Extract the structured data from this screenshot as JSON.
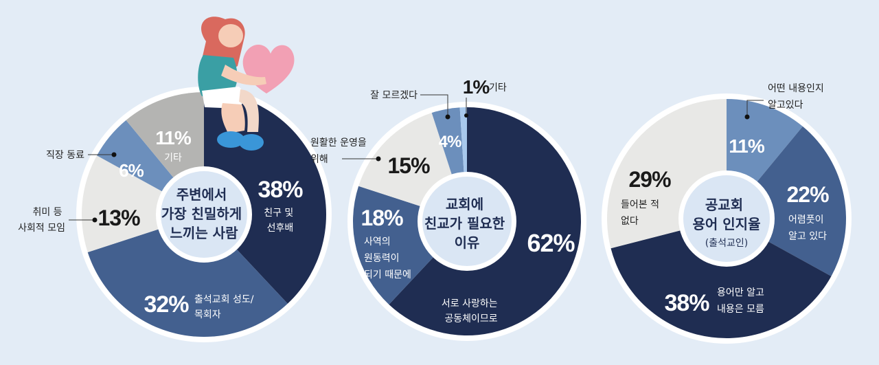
{
  "colors": {
    "navy": "#1f2d52",
    "mid": "#43608f",
    "light": "#6c8fbc",
    "pale": "#e8e8e6",
    "gray": "#b4b4b2",
    "sky": "#a8c8ec",
    "ring": "#ffffff",
    "center": "#dae6f4",
    "background": "#e3ecf6"
  },
  "chart_data": [
    {
      "type": "pie",
      "title": "주변에서 가장 친밀하게 느끼는 사람",
      "title_lines": [
        "주변에서",
        "가장 친밀하게",
        "느끼는 사람"
      ],
      "slices": [
        {
          "pct_text": "38%",
          "label_lines": [
            "친구 및",
            "선후배"
          ],
          "value": 38,
          "color": "#1f2d52",
          "pct_size": 34,
          "pct_fill": "#ffffff",
          "label_fill": "#ffffff"
        },
        {
          "pct_text": "32%",
          "label_lines": [
            "출석교회 성도/",
            "목회자"
          ],
          "value": 32,
          "color": "#43608f",
          "pct_size": 34,
          "pct_fill": "#ffffff",
          "label_fill": "#ffffff"
        },
        {
          "pct_text": "13%",
          "label_lines": [
            "취미 등",
            "사회적 모임"
          ],
          "value": 13,
          "color": "#e8e8e6",
          "pct_size": 32,
          "pct_fill": "#1a1a1a",
          "label_fill": "#222222",
          "external": true
        },
        {
          "pct_text": "6%",
          "label_lines": [
            "직장 동료"
          ],
          "value": 6,
          "color": "#6c8fbc",
          "pct_size": 26,
          "pct_fill": "#ffffff",
          "label_fill": "#222222",
          "external": true
        },
        {
          "pct_text": "11%",
          "label_lines": [
            "기타"
          ],
          "value": 11,
          "color": "#b4b4b2",
          "pct_size": 28,
          "pct_fill": "#ffffff",
          "label_fill": "#ffffff"
        }
      ]
    },
    {
      "type": "pie",
      "title": "교회에 친교가 필요한 이유",
      "title_lines": [
        "교회에",
        "친교가 필요한",
        "이유"
      ],
      "slices": [
        {
          "pct_text": "62%",
          "label_lines": [
            "서로 사랑하는",
            "공동체이므로"
          ],
          "value": 62,
          "color": "#1f2d52",
          "pct_size": 36,
          "pct_fill": "#ffffff",
          "label_fill": "#ffffff"
        },
        {
          "pct_text": "18%",
          "label_lines": [
            "사역의",
            "원동력이",
            "되기 때문에"
          ],
          "value": 18,
          "color": "#43608f",
          "pct_size": 32,
          "pct_fill": "#ffffff",
          "label_fill": "#ffffff"
        },
        {
          "pct_text": "15%",
          "label_lines": [
            "원활한 운영을",
            "위해"
          ],
          "value": 15,
          "color": "#e8e8e6",
          "pct_size": 32,
          "pct_fill": "#1a1a1a",
          "label_fill": "#222222",
          "external": true
        },
        {
          "pct_text": "4%",
          "label_lines": [
            "잘 모르겠다"
          ],
          "value": 4,
          "color": "#6c8fbc",
          "pct_size": 24,
          "pct_fill": "#ffffff",
          "label_fill": "#222222",
          "external": true
        },
        {
          "pct_text": "1%",
          "label_lines": [
            "기타"
          ],
          "value": 1,
          "color": "#a8c8ec",
          "pct_size": 28,
          "pct_fill": "#1a1a1a",
          "label_fill": "#222222",
          "external": true
        }
      ]
    },
    {
      "type": "pie",
      "title": "공교회 용어 인지율 (출석교인)",
      "title_lines": [
        "공교회",
        "용어 인지율"
      ],
      "subtitle": "(출석교인)",
      "slices": [
        {
          "pct_text": "11%",
          "label_lines": [
            "어떤 내용인지",
            "알고있다"
          ],
          "value": 11,
          "color": "#6c8fbc",
          "pct_size": 28,
          "pct_fill": "#ffffff",
          "label_fill": "#222222",
          "external": true
        },
        {
          "pct_text": "22%",
          "label_lines": [
            "어렴풋이",
            "알고 있다"
          ],
          "value": 22,
          "color": "#43608f",
          "pct_size": 32,
          "pct_fill": "#ffffff",
          "label_fill": "#ffffff"
        },
        {
          "pct_text": "38%",
          "label_lines": [
            "용어만 알고",
            "내용은 모름"
          ],
          "value": 38,
          "color": "#1f2d52",
          "pct_size": 34,
          "pct_fill": "#ffffff",
          "label_fill": "#ffffff"
        },
        {
          "pct_text": "29%",
          "label_lines": [
            "들어본 적",
            "없다"
          ],
          "value": 29,
          "color": "#e8e8e6",
          "pct_size": 32,
          "pct_fill": "#1a1a1a",
          "label_fill": "#222222"
        }
      ]
    }
  ]
}
